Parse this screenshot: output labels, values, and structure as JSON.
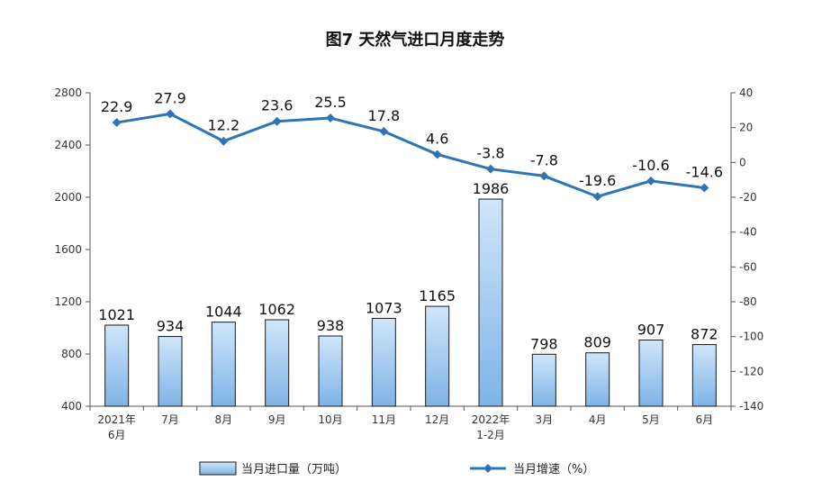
{
  "chart_data": {
    "type": "bar+line",
    "title": "图7  天然气进口月度走势",
    "categories": [
      [
        "2021年",
        "6月"
      ],
      [
        "7月"
      ],
      [
        "8月"
      ],
      [
        "9月"
      ],
      [
        "10月"
      ],
      [
        "11月"
      ],
      [
        "12月"
      ],
      [
        "2022年",
        "1-2月"
      ],
      [
        "3月"
      ],
      [
        "4月"
      ],
      [
        "5月"
      ],
      [
        "6月"
      ]
    ],
    "series": [
      {
        "name": "当月进口量（万吨）",
        "type": "bar",
        "axis": "left",
        "values": [
          1021,
          934,
          1044,
          1062,
          938,
          1073,
          1165,
          1986,
          798,
          809,
          907,
          872
        ],
        "labels": [
          "1021",
          "934",
          "1044",
          "1062",
          "938",
          "1073",
          "1165",
          "1986",
          "798",
          "809",
          "907",
          "872"
        ]
      },
      {
        "name": "当月增速（%）",
        "type": "line",
        "axis": "right",
        "values": [
          22.9,
          27.9,
          12.2,
          23.6,
          25.5,
          17.8,
          4.6,
          -3.8,
          -7.8,
          -19.6,
          -10.6,
          -14.6
        ],
        "labels": [
          "22.9",
          "27.9",
          "12.2",
          "23.6",
          "25.5",
          "17.8",
          "4.6",
          "-3.8",
          "-7.8",
          "-19.6",
          "-10.6",
          "-14.6"
        ]
      }
    ],
    "y_left": {
      "ylim": [
        400,
        2800
      ],
      "ticks": [
        "400",
        "800",
        "1200",
        "1600",
        "2000",
        "2400",
        "2800"
      ]
    },
    "y_right": {
      "ylim": [
        -140,
        40
      ],
      "ticks": [
        "-140",
        "-120",
        "-100",
        "-80",
        "-60",
        "-40",
        "-20",
        "0",
        "20",
        "40"
      ]
    },
    "grid": false,
    "legend_position": "bottom",
    "colors": {
      "bar_fill_top": "#cfe6fb",
      "bar_fill_bottom": "#7fb3e6",
      "bar_stroke": "#1a1a1a",
      "line": "#2e75b6",
      "axis": "#555555"
    }
  }
}
